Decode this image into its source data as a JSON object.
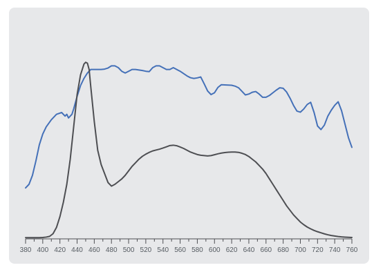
{
  "chart_data": {
    "type": "line",
    "title": "",
    "xlabel": "",
    "ylabel": "",
    "xlim": [
      380,
      760
    ],
    "ylim": [
      0,
      100
    ],
    "grid": false,
    "x_ticks": [
      "380",
      "400",
      "420",
      "440",
      "460",
      "480",
      "500",
      "520",
      "540",
      "560",
      "580",
      "600",
      "620",
      "640",
      "660",
      "680",
      "700",
      "720",
      "740",
      "760"
    ],
    "series": [
      {
        "color": "#4470b8",
        "x": [
          380,
          384,
          388,
          392,
          396,
          400,
          404,
          410,
          416,
          422,
          426,
          428,
          430,
          432,
          434,
          436,
          440,
          444,
          448,
          452,
          456,
          460,
          464,
          468,
          472,
          476,
          480,
          484,
          488,
          492,
          496,
          500,
          504,
          508,
          512,
          516,
          520,
          524,
          528,
          532,
          536,
          540,
          544,
          548,
          552,
          556,
          560,
          564,
          568,
          572,
          576,
          580,
          584,
          588,
          592,
          596,
          600,
          604,
          608,
          612,
          616,
          620,
          624,
          628,
          632,
          636,
          640,
          644,
          648,
          652,
          656,
          660,
          664,
          668,
          672,
          676,
          680,
          684,
          688,
          692,
          696,
          700,
          704,
          708,
          712,
          716,
          720,
          724,
          728,
          732,
          736,
          740,
          744,
          748,
          752,
          756,
          760
        ],
        "y": [
          28,
          30,
          35,
          43,
          52,
          58,
          62,
          66,
          69,
          70,
          68,
          69,
          67,
          68,
          69,
          72,
          79,
          85,
          89,
          92,
          94,
          94,
          94,
          94,
          94.2,
          94.8,
          96,
          96,
          95,
          93,
          92,
          93,
          94,
          94,
          93.7,
          93.4,
          93,
          92.8,
          95,
          96,
          96,
          95,
          94,
          94,
          95,
          94,
          93,
          91.7,
          90.4,
          89.4,
          89,
          89.3,
          89.8,
          86,
          82,
          80,
          81,
          84,
          85.5,
          85.4,
          85.3,
          85.2,
          84.7,
          83.8,
          81.8,
          79.8,
          80.3,
          81.3,
          81.7,
          80.3,
          78.5,
          78.5,
          79.5,
          81,
          82.5,
          83.8,
          83.5,
          81.4,
          78,
          74,
          70.8,
          70.2,
          72,
          74.5,
          75.7,
          70,
          62.5,
          60.5,
          63,
          68,
          71.3,
          74,
          76,
          71,
          63.5,
          56,
          50.6
        ]
      },
      {
        "color": "#4d4e52",
        "x": [
          380,
          384,
          388,
          392,
          396,
          400,
          404,
          408,
          412,
          416,
          420,
          424,
          428,
          432,
          436,
          440,
          444,
          448,
          450,
          452,
          454,
          456,
          460,
          464,
          468,
          472,
          476,
          480,
          484,
          488,
          492,
          496,
          500,
          504,
          508,
          512,
          516,
          520,
          524,
          528,
          532,
          536,
          540,
          544,
          548,
          552,
          556,
          560,
          564,
          568,
          572,
          576,
          580,
          584,
          588,
          592,
          596,
          600,
          604,
          608,
          612,
          616,
          620,
          624,
          628,
          632,
          636,
          640,
          644,
          648,
          652,
          656,
          660,
          664,
          668,
          672,
          676,
          680,
          684,
          688,
          692,
          696,
          700,
          704,
          708,
          712,
          716,
          720,
          724,
          728,
          732,
          736,
          740,
          744,
          748,
          752,
          756,
          760
        ],
        "y": [
          0.3,
          0.3,
          0.3,
          0.3,
          0.3,
          0.4,
          0.6,
          1,
          2.5,
          6,
          12,
          20,
          30,
          44,
          62,
          80,
          91,
          97,
          98,
          97.5,
          94,
          84,
          65,
          49,
          41,
          36,
          31,
          29,
          30,
          31.5,
          33,
          35,
          37.5,
          40,
          42,
          44,
          45.6,
          46.8,
          47.8,
          48.6,
          49.1,
          49.6,
          50.2,
          50.9,
          51.6,
          51.8,
          51.5,
          50.8,
          50,
          49,
          48,
          47.3,
          46.6,
          46.2,
          46,
          45.8,
          46,
          46.5,
          47,
          47.4,
          47.7,
          47.9,
          48,
          48,
          47.8,
          47.3,
          46.6,
          45.5,
          44,
          42.5,
          40.5,
          38.5,
          36,
          33,
          30,
          27,
          24,
          21,
          18,
          15.5,
          13,
          11,
          9,
          7.5,
          6.2,
          5.2,
          4.3,
          3.6,
          3,
          2.4,
          1.9,
          1.5,
          1.2,
          0.9,
          0.7,
          0.6,
          0.5,
          0.4
        ]
      }
    ]
  }
}
